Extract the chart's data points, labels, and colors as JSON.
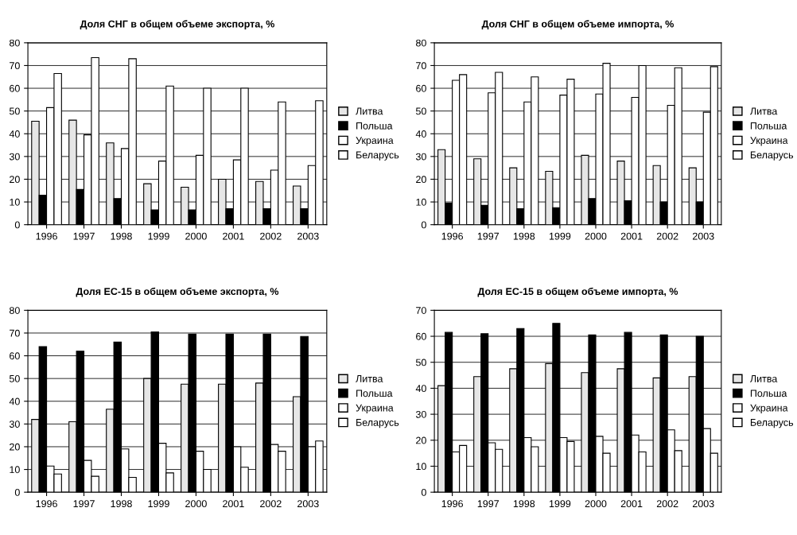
{
  "chart_data": [
    {
      "type": "bar",
      "title": "Доля СНГ в общем объеме экспорта, %",
      "categories": [
        "1996",
        "1997",
        "1998",
        "1999",
        "2000",
        "2001",
        "2002",
        "2003"
      ],
      "ylim": [
        0,
        80
      ],
      "yticks": [
        0,
        10,
        20,
        30,
        40,
        50,
        60,
        70,
        80
      ],
      "grid": "y",
      "legend": "right",
      "series": [
        {
          "name": "Литва",
          "color": "#e6e6e6",
          "values": [
            45.5,
            46,
            36,
            18,
            16.5,
            20,
            19,
            17
          ]
        },
        {
          "name": "Польша",
          "color": "#000000",
          "values": [
            13,
            15.5,
            11.5,
            6.5,
            6.5,
            7,
            7,
            7
          ]
        },
        {
          "name": "Украина",
          "color": "#ffffff",
          "values": [
            51.5,
            39.5,
            33.5,
            28,
            30.5,
            28.5,
            24,
            26
          ]
        },
        {
          "name": "Беларусь",
          "color": "#ffffff",
          "values": [
            66.5,
            73.5,
            73,
            61,
            60,
            60,
            54,
            54.5
          ]
        }
      ]
    },
    {
      "type": "bar",
      "title": "Доля СНГ в общем объеме импорта, %",
      "categories": [
        "1996",
        "1997",
        "1998",
        "1999",
        "2000",
        "2001",
        "2002",
        "2003"
      ],
      "ylim": [
        0,
        80
      ],
      "yticks": [
        0,
        10,
        20,
        30,
        40,
        50,
        60,
        70,
        80
      ],
      "grid": "y",
      "legend": "right",
      "series": [
        {
          "name": "Литва",
          "color": "#e6e6e6",
          "values": [
            33,
            29,
            25,
            23.5,
            30.5,
            28,
            26,
            25
          ]
        },
        {
          "name": "Польша",
          "color": "#000000",
          "values": [
            9.5,
            8.5,
            7,
            7.5,
            11.5,
            10.5,
            10,
            10
          ]
        },
        {
          "name": "Украина",
          "color": "#ffffff",
          "values": [
            63.5,
            58,
            54,
            57,
            57.5,
            56,
            52.5,
            49.5
          ]
        },
        {
          "name": "Беларусь",
          "color": "#ffffff",
          "values": [
            66,
            67,
            65,
            64,
            71,
            70,
            69,
            69.5
          ]
        }
      ]
    },
    {
      "type": "bar",
      "title": "Доля ЕС-15 в общем объеме экспорта, %",
      "categories": [
        "1996",
        "1997",
        "1998",
        "1999",
        "2000",
        "2001",
        "2002",
        "2003"
      ],
      "ylim": [
        0,
        80
      ],
      "yticks": [
        0,
        10,
        20,
        30,
        40,
        50,
        60,
        70,
        80
      ],
      "grid": "y",
      "legend": "right",
      "series": [
        {
          "name": "Литва",
          "color": "#e6e6e6",
          "values": [
            32,
            31,
            36.5,
            50,
            47.5,
            47.5,
            48,
            42
          ]
        },
        {
          "name": "Польша",
          "color": "#000000",
          "values": [
            64,
            62,
            66,
            70.5,
            69.5,
            69.5,
            69.5,
            68.5
          ]
        },
        {
          "name": "Украина",
          "color": "#ffffff",
          "values": [
            11.5,
            14,
            19,
            21.5,
            18,
            20,
            21,
            20
          ]
        },
        {
          "name": "Беларусь",
          "color": "#ffffff",
          "values": [
            8,
            7,
            6.5,
            8.5,
            10,
            11,
            18,
            22.5
          ]
        }
      ]
    },
    {
      "type": "bar",
      "title": "Доля ЕС-15 в общем объеме импорта, %",
      "categories": [
        "1996",
        "1997",
        "1998",
        "1999",
        "2000",
        "2001",
        "2002",
        "2003"
      ],
      "ylim": [
        0,
        70
      ],
      "yticks": [
        0,
        10,
        20,
        30,
        40,
        50,
        60,
        70
      ],
      "grid": "y",
      "legend": "right",
      "series": [
        {
          "name": "Литва",
          "color": "#e6e6e6",
          "values": [
            41,
            44.5,
            47.5,
            49.5,
            46,
            47.5,
            44,
            44.5
          ]
        },
        {
          "name": "Польша",
          "color": "#000000",
          "values": [
            61.5,
            61,
            63,
            65,
            60.5,
            61.5,
            60.5,
            60
          ]
        },
        {
          "name": "Украина",
          "color": "#ffffff",
          "values": [
            15.5,
            19,
            21,
            21,
            21.5,
            22,
            24,
            24.5
          ]
        },
        {
          "name": "Беларусь",
          "color": "#ffffff",
          "values": [
            18,
            16.5,
            17.5,
            19.5,
            15,
            15.5,
            16,
            15
          ]
        }
      ]
    }
  ]
}
